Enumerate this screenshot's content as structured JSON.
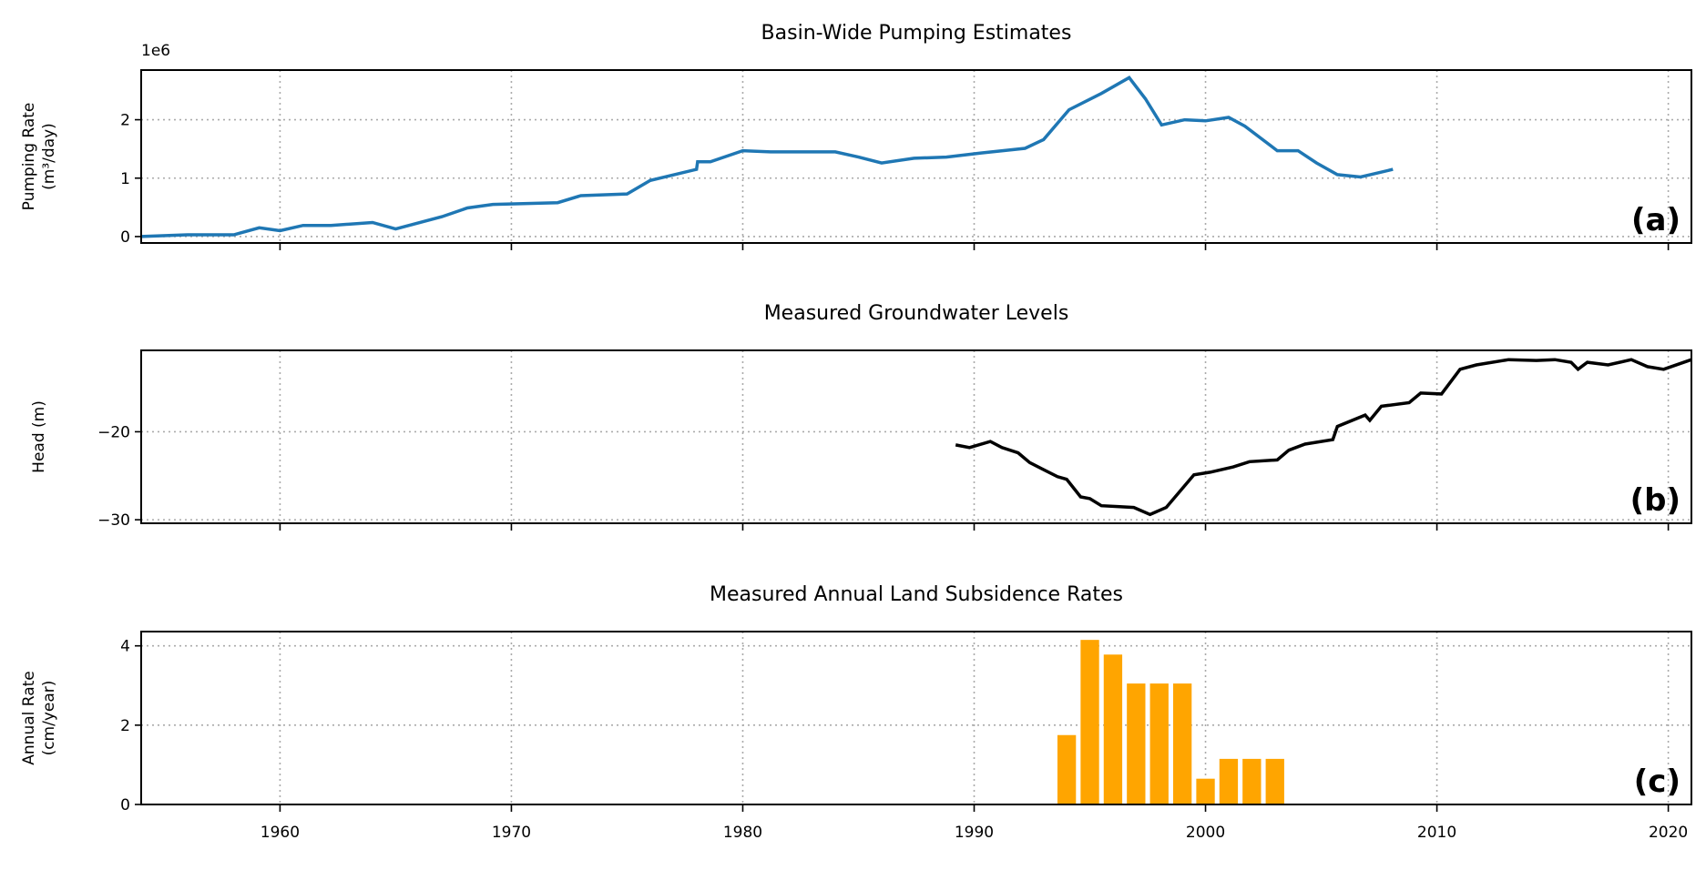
{
  "chart_data": [
    {
      "type": "line",
      "title": "Basin-Wide Pumping Estimates",
      "ylabel": [
        "Pumping Rate",
        "(m³/day)"
      ],
      "offset_label": "1e6",
      "panel_label": "(a)",
      "color": "#1f77b4",
      "x": [
        1954,
        1956,
        1958,
        1959.1,
        1960,
        1961,
        1962.2,
        1964,
        1965,
        1967,
        1968.1,
        1969.2,
        1972,
        1973,
        1975,
        1976,
        1978,
        1978.05,
        1978.6,
        1980,
        1981.2,
        1984,
        1985,
        1986,
        1987.4,
        1988.8,
        1990.3,
        1992.2,
        1993,
        1994.1,
        1995.5,
        1996.7,
        1997.4,
        1998.1,
        1999.1,
        2000,
        2001,
        2001.7,
        2003.1,
        2004,
        2004.8,
        2005.7,
        2006.7,
        2008.1
      ],
      "values": [
        0.0,
        0.03,
        0.03,
        0.15,
        0.1,
        0.19,
        0.19,
        0.24,
        0.13,
        0.34,
        0.49,
        0.55,
        0.58,
        0.7,
        0.73,
        0.96,
        1.15,
        1.28,
        1.28,
        1.47,
        1.45,
        1.45,
        1.36,
        1.26,
        1.34,
        1.36,
        1.43,
        1.51,
        1.66,
        2.17,
        2.45,
        2.72,
        2.36,
        1.91,
        2.0,
        1.98,
        2.04,
        1.89,
        1.47,
        1.47,
        1.26,
        1.06,
        1.02,
        1.15
      ],
      "xlim": [
        1954,
        2021
      ],
      "xticks": [
        1960,
        1970,
        1980,
        1990,
        2000,
        2010,
        2020
      ],
      "ylim": [
        -0.11,
        2.85
      ],
      "yticks": [
        0,
        1,
        2
      ],
      "grid": true
    },
    {
      "type": "line",
      "title": "Measured Groundwater Levels",
      "ylabel": [
        "Head (m)"
      ],
      "panel_label": "(b)",
      "color": "#000000",
      "x": [
        1989.2,
        1989.8,
        1990.7,
        1991.2,
        1991.9,
        1992.4,
        1993.6,
        1994,
        1994.6,
        1995,
        1995.5,
        1996.2,
        1996.9,
        1997.6,
        1998.3,
        1999.5,
        2000.2,
        2001.2,
        2001.9,
        2003.1,
        2003.6,
        2004.3,
        2005.5,
        2005.7,
        2006.9,
        2007.1,
        2007.6,
        2008.8,
        2009.3,
        2010.2,
        2011,
        2011.7,
        2013.1,
        2014.3,
        2015.1,
        2015.8,
        2016.1,
        2016.5,
        2017.4,
        2018.4,
        2019.1,
        2019.8,
        2021
      ],
      "values": [
        -21.5,
        -21.8,
        -21.1,
        -21.8,
        -22.4,
        -23.5,
        -25.1,
        -25.4,
        -27.4,
        -27.6,
        -28.4,
        -28.5,
        -28.6,
        -29.4,
        -28.6,
        -24.9,
        -24.6,
        -24.0,
        -23.4,
        -23.2,
        -22.1,
        -21.4,
        -20.9,
        -19.4,
        -18.1,
        -18.7,
        -17.1,
        -16.7,
        -15.6,
        -15.7,
        -12.9,
        -12.4,
        -11.8,
        -11.9,
        -11.8,
        -12.1,
        -12.9,
        -12.1,
        -12.4,
        -11.8,
        -12.6,
        -12.9,
        -11.8
      ],
      "xlim": [
        1954,
        2021
      ],
      "xticks": [
        1960,
        1970,
        1980,
        1990,
        2000,
        2010,
        2020
      ],
      "ylim": [
        -30.4,
        -10.75
      ],
      "yticks": [
        {
          "value": -20,
          "label": "−20"
        },
        {
          "value": -30,
          "label": "−30"
        }
      ],
      "grid": true
    },
    {
      "type": "bar",
      "title": "Measured Annual Land Subsidence Rates",
      "ylabel": [
        "Annual Rate",
        "(cm/year)"
      ],
      "panel_label": "(c)",
      "color": "#ffa500",
      "x": [
        1994,
        1995,
        1996,
        1997,
        1998,
        1999,
        2000,
        2001,
        2002,
        2003
      ],
      "values": [
        1.75,
        4.15,
        3.78,
        3.05,
        3.05,
        3.05,
        0.65,
        1.15,
        1.15,
        1.15
      ],
      "xlim": [
        1954,
        2021
      ],
      "xticks": [
        1960,
        1970,
        1980,
        1990,
        2000,
        2010,
        2020
      ],
      "ylim": [
        0,
        4.36
      ],
      "yticks": [
        0,
        2,
        4
      ],
      "grid": true
    }
  ]
}
